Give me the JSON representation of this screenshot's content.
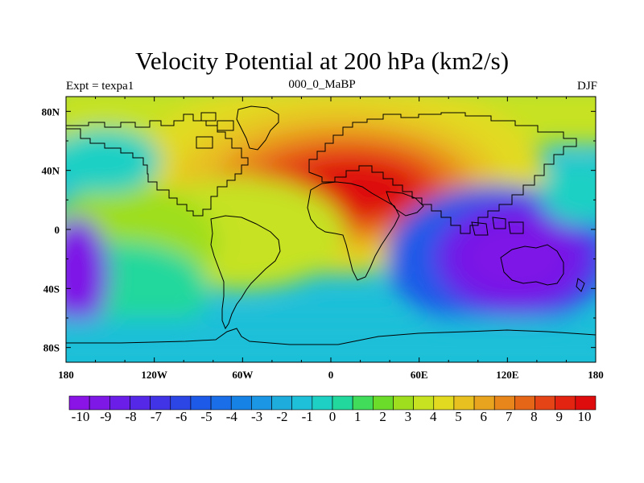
{
  "title": "Velocity Potential at 200 hPa (km2/s)",
  "subtitle_left": "Expt = texpa1",
  "subtitle_center": "000_0_MaBP",
  "subtitle_right": "DJF",
  "map": {
    "projection": "cylindrical equidistant",
    "lon_range": [
      -180,
      180
    ],
    "lat_range": [
      -90,
      90
    ],
    "lon_ticks": [
      "180",
      "120W",
      "60W",
      "0",
      "60E",
      "120E",
      "180"
    ],
    "lat_ticks": [
      "80N",
      "40N",
      "0",
      "40S",
      "80S"
    ]
  },
  "colorbar": {
    "labels": [
      "-10",
      "-9",
      "-8",
      "-7",
      "-6",
      "-5",
      "-4",
      "-3",
      "-2",
      "-1",
      "0",
      "1",
      "2",
      "3",
      "4",
      "5",
      "6",
      "7",
      "8",
      "9",
      "10"
    ],
    "colors": [
      "#8a14e6",
      "#7d18e6",
      "#6a1ee8",
      "#5528e8",
      "#4034e6",
      "#2c46e6",
      "#1e5ae8",
      "#1a6ee8",
      "#1682e6",
      "#1a96e4",
      "#1eacdc",
      "#1ebfd8",
      "#1ed0c4",
      "#22d89c",
      "#40dc5a",
      "#6cdc2a",
      "#9ede1e",
      "#c6e220",
      "#e2da20",
      "#e8c020",
      "#e8a41e",
      "#e8861c",
      "#e66618",
      "#e44416",
      "#e22410",
      "#de0c0c"
    ]
  },
  "colors": {
    "min": "#8a14e6",
    "max": "#de0c0c",
    "coastline": "#000000"
  }
}
